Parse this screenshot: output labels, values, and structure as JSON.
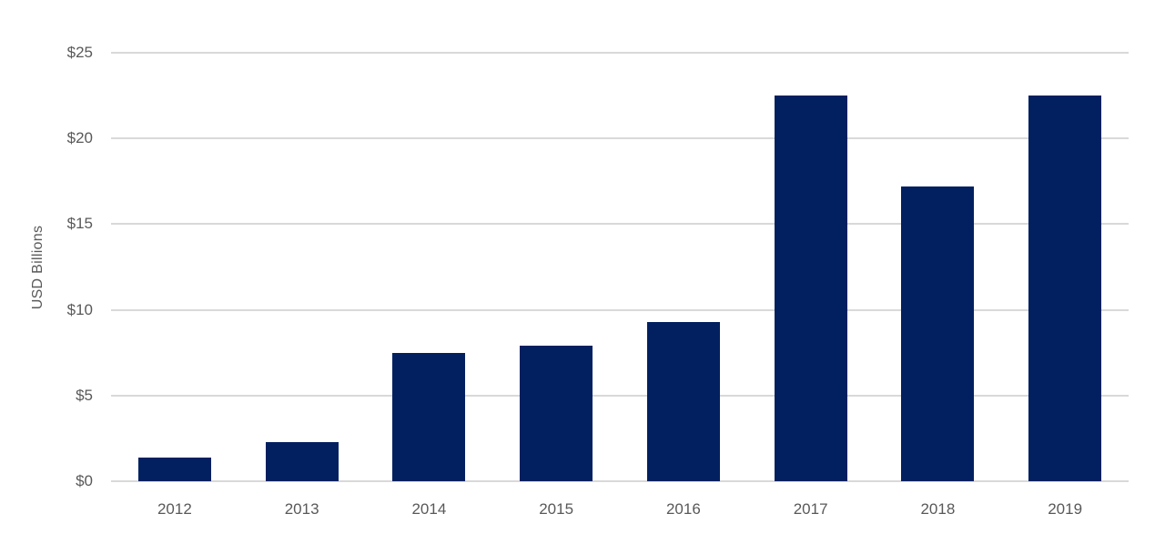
{
  "chart_data": {
    "type": "bar",
    "title": "",
    "categories": [
      "2012",
      "2013",
      "2014",
      "2015",
      "2016",
      "2017",
      "2018",
      "2019"
    ],
    "values": [
      1.4,
      2.3,
      7.5,
      7.9,
      9.3,
      22.5,
      17.2,
      22.5
    ],
    "xlabel": "",
    "ylabel": "USD Billions",
    "ylim": [
      0,
      25
    ],
    "ytick_step": 5,
    "ytick_labels": [
      "$0",
      "$5",
      "$10",
      "$15",
      "$20",
      "$25"
    ],
    "grid": "horizontal",
    "legend": "none",
    "bar_color": "#022060",
    "gridline_color": "#d9d9d9",
    "axis_label_color": "#595959"
  }
}
